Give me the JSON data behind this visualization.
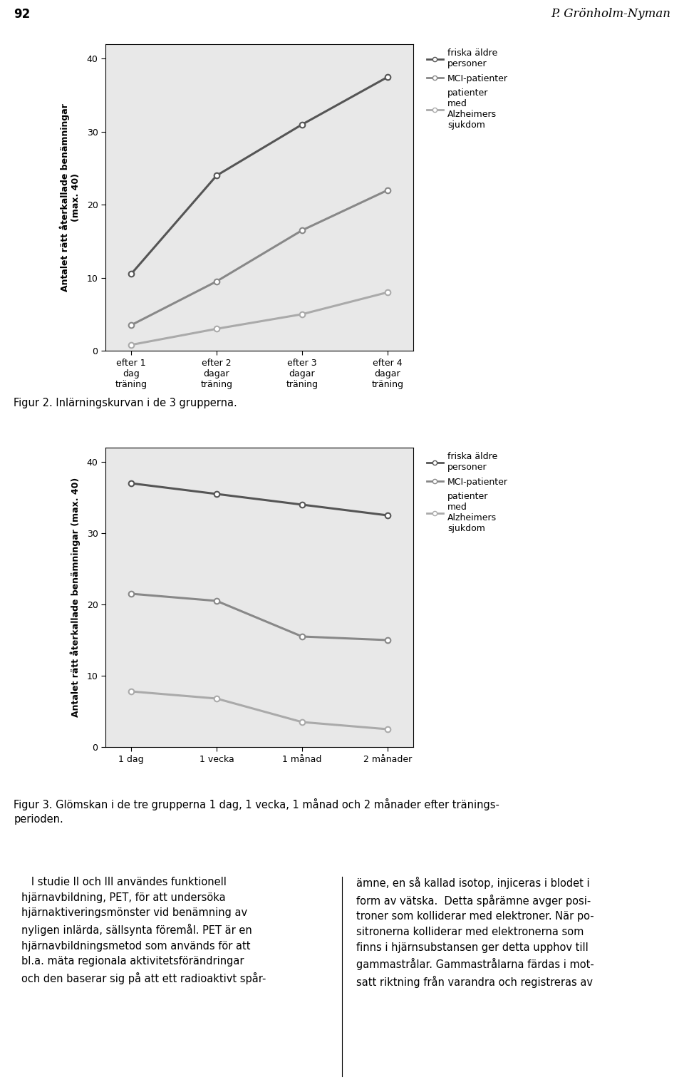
{
  "chart1": {
    "ylabel_line1": "Antalet rätt återkallade benämningar",
    "ylabel_line2": "(max. 40)",
    "xlabel_ticks": [
      "efter 1\ndag\nträning",
      "efter 2\ndagar\nträning",
      "efter 3\ndagar\nträning",
      "efter 4\ndagar\nträning"
    ],
    "ylim": [
      0,
      42
    ],
    "yticks": [
      0,
      10,
      20,
      30,
      40
    ],
    "series": [
      {
        "label": "friska äldre\npersoner",
        "values": [
          10.5,
          24,
          31,
          37.5
        ],
        "color": "#555555"
      },
      {
        "label": "MCI-patienter",
        "values": [
          3.5,
          9.5,
          16.5,
          22
        ],
        "color": "#888888"
      },
      {
        "label": "patienter\nmed\nAlzheimers\nsjukdom",
        "values": [
          0.8,
          3.0,
          5.0,
          8.0
        ],
        "color": "#aaaaaa"
      }
    ]
  },
  "chart2": {
    "ylabel_line1": "Antalet rätt återkallade benämningar (max. 40)",
    "ylabel_line2": "",
    "xlabel_ticks": [
      "1 dag",
      "1 vecka",
      "1 månad",
      "2 månader"
    ],
    "ylim": [
      0,
      42
    ],
    "yticks": [
      0,
      10,
      20,
      30,
      40
    ],
    "series": [
      {
        "label": "friska äldre\npersoner",
        "values": [
          37.0,
          35.5,
          34.0,
          32.5
        ],
        "color": "#555555"
      },
      {
        "label": "MCI-patienter",
        "values": [
          21.5,
          20.5,
          15.5,
          15.0
        ],
        "color": "#888888"
      },
      {
        "label": "patienter\nmed\nAlzheimers\nsjukdom",
        "values": [
          7.8,
          6.8,
          3.5,
          2.5
        ],
        "color": "#aaaaaa"
      }
    ]
  },
  "fig2_caption": "Figur 2. Inlärningskurvan i de 3 grupperna.",
  "fig3_caption_line1": "Figur 3. Glömskan i de tre grupperna 1 dag, 1 vecka, 1 månad och 2 månader efter tränings-",
  "fig3_caption_line2": "perioden.",
  "page_number": "92",
  "author": "P. Grönholm-Nyman",
  "body_text_left": "   I studie II och III användes funktionell\nhjärnavbildning, PET, för att undersöka\nhjärnaktiveringsmönster vid benämning av\nnyligen inlärda, sällsynta föremål. PET är en\nhjärnavbildningsmetod som används för att\nbl.a. mäta regionala aktivitetsförändringar\noch den baserar sig på att ett radioaktivt spår-",
  "body_text_right": "ämne, en så kallad isotop, injiceras i blodet i\nform av vätska.  Detta spårämne avger posi-\ntroner som kolliderar med elektroner. När po-\nsitronerna kolliderar med elektronerna som\nfinns i hjärnsubstansen ger detta upphov till\ngammastrålar. Gammastrålarna färdas i mot-\nsatt riktning från varandra och registreras av",
  "bg_color": "#e8e8e8",
  "line_width": 2.2,
  "marker_size": 5.5,
  "legend_fontsize": 9,
  "tick_fontsize": 9,
  "ylabel_fontsize": 9,
  "body_fontsize": 10.5,
  "caption_fontsize": 10.5
}
